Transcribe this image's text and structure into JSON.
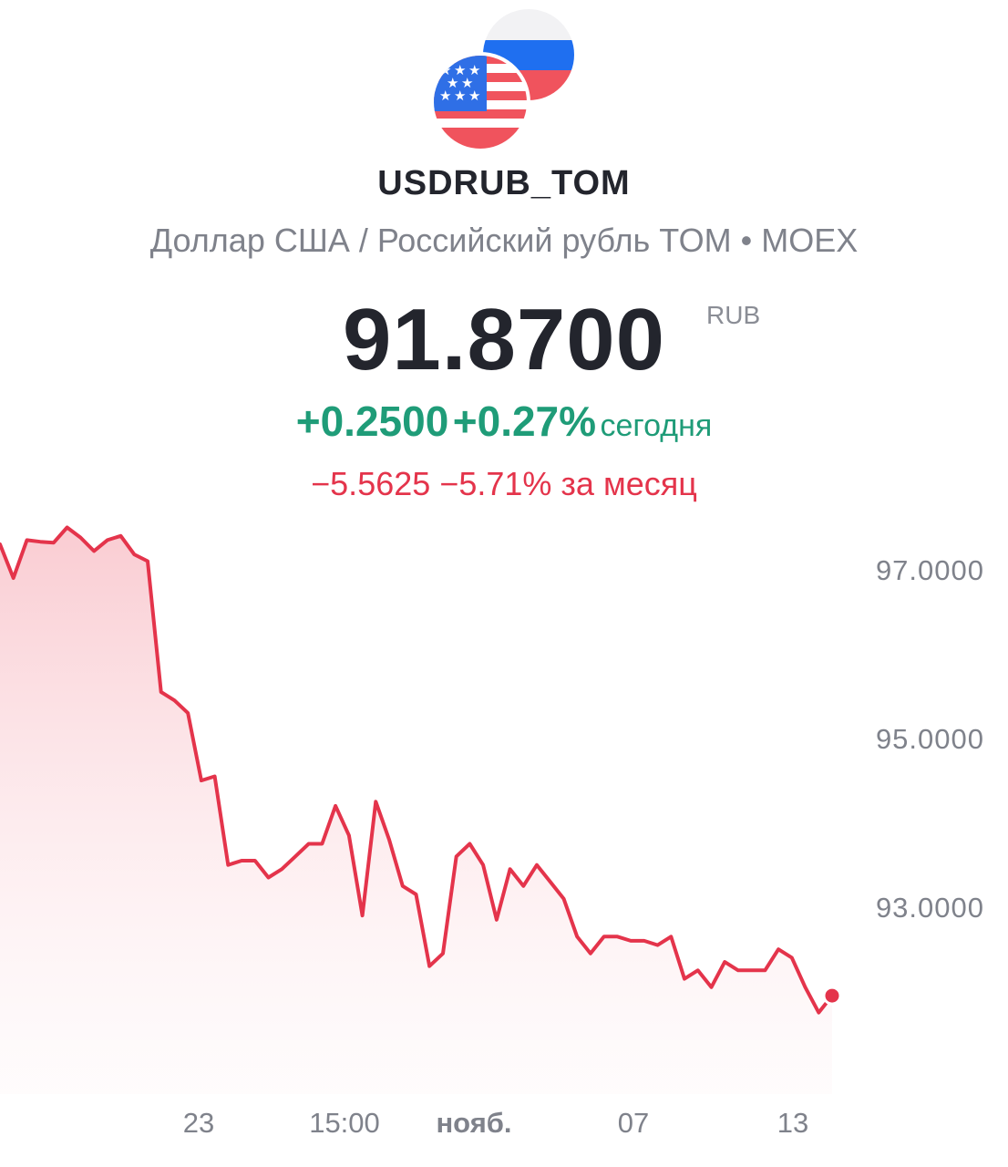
{
  "header": {
    "ticker": "USDRUB_TOM",
    "subtitle": "Доллар США / Российский рубль TOM • MOEX",
    "flags_icon": "usd-rub-flags-icon"
  },
  "quote": {
    "price": "91.8700",
    "currency": "RUB",
    "today_change": "+0.2500",
    "today_change_pct": "+0.27%",
    "today_label": "сегодня",
    "month_change": "−5.5625",
    "month_change_pct": "−5.71%",
    "month_label": "за месяц"
  },
  "colors": {
    "positive": "#1f9c78",
    "negative": "#e4344b",
    "text": "#23252d",
    "muted": "#7f828b"
  },
  "chart_data": {
    "type": "area",
    "currency": "RUB",
    "y_ticks": [
      "97.0000",
      "95.0000",
      "93.0000"
    ],
    "x_ticks": [
      "23",
      "15:00",
      "нояб.",
      "07",
      "13"
    ],
    "x_tick_bold": [
      false,
      false,
      true,
      false,
      false
    ],
    "ylim": [
      91.0,
      97.7
    ],
    "grid": false,
    "legend": "none",
    "values": [
      97.3,
      96.9,
      97.35,
      97.33,
      97.32,
      97.5,
      97.38,
      97.22,
      97.35,
      97.4,
      97.18,
      97.1,
      95.55,
      95.45,
      95.3,
      94.5,
      94.55,
      93.5,
      93.55,
      93.55,
      93.35,
      93.45,
      93.6,
      93.75,
      93.75,
      94.2,
      93.85,
      92.9,
      94.25,
      93.8,
      93.25,
      93.15,
      92.3,
      92.45,
      93.6,
      93.75,
      93.5,
      92.85,
      93.45,
      93.25,
      93.5,
      93.3,
      93.1,
      92.65,
      92.45,
      92.65,
      92.65,
      92.6,
      92.6,
      92.55,
      92.65,
      92.15,
      92.25,
      92.05,
      92.35,
      92.25,
      92.25,
      92.25,
      92.5,
      92.4,
      92.05,
      91.75,
      91.95
    ]
  }
}
